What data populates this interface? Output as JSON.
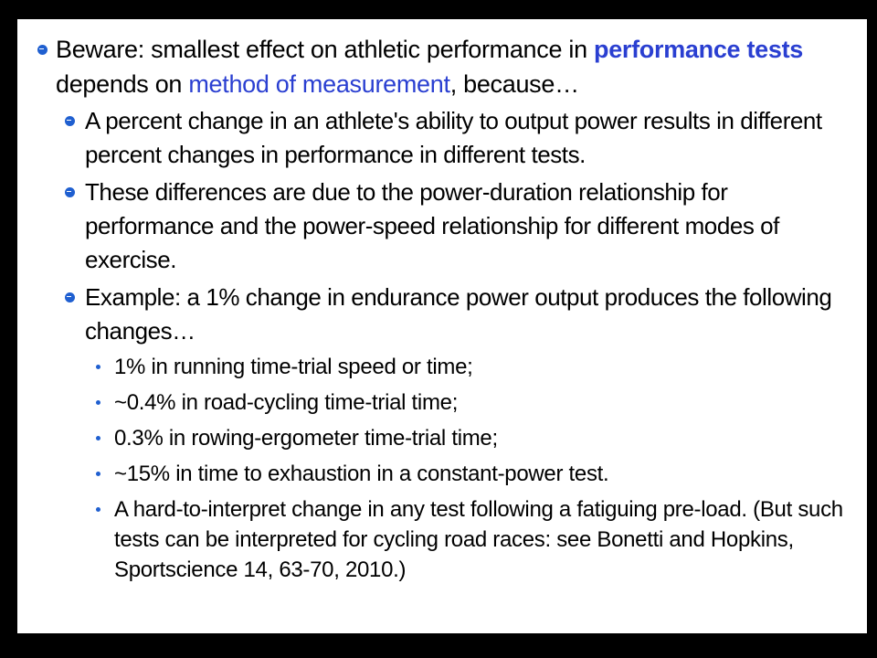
{
  "intro": {
    "text_1": "Beware: smallest effect on athletic performance in ",
    "highlight_1": "performance tests",
    "text_2": " depends on ",
    "highlight_2": "method of measurement",
    "text_3": ", because…"
  },
  "points": [
    "A percent change in an athlete's ability to output power results in different percent changes in performance in different tests.",
    "These differences are due to the power-duration relationship for performance and the power-speed relationship for different modes of exercise.",
    "Example: a 1% change in endurance power output produces the following changes…"
  ],
  "changes": [
    "1% in running time-trial speed or time;",
    "~0.4% in road-cycling time-trial time;",
    "0.3% in rowing-ergometer time-trial time;",
    "~15% in time to exhaustion in a constant-power test.",
    "A hard-to-interpret change in any test following a fatiguing pre-load. (But such tests can be interpreted for cycling road races: see Bonetti and Hopkins, Sportscience 14, 63-70, 2010.)"
  ],
  "colors": {
    "background": "#000000",
    "slide": "#ffffff",
    "highlight": "#2a3fd1",
    "bullet": "#1f5fd0"
  }
}
